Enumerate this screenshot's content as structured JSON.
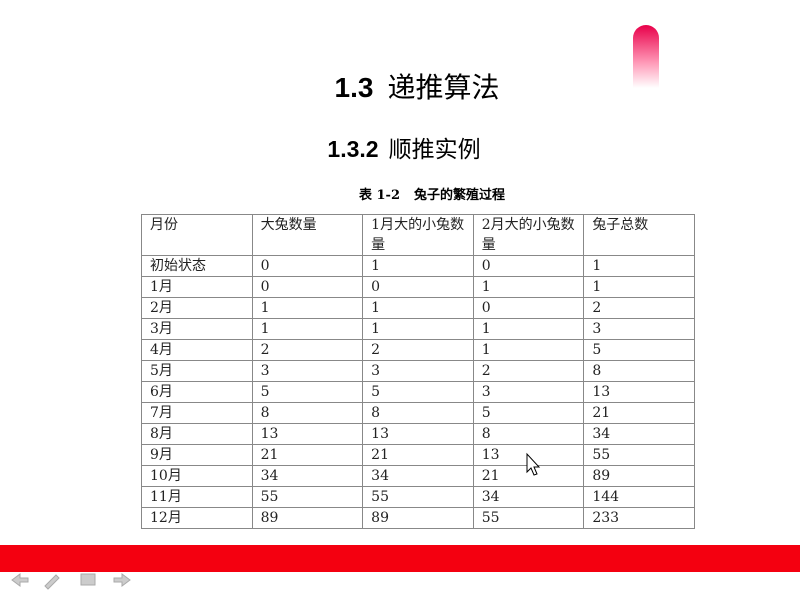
{
  "heading": {
    "number": "1.3",
    "text": "递推算法"
  },
  "subheading": {
    "number": "1.3.2",
    "text": "顺推实例"
  },
  "table": {
    "caption": {
      "label": "表 1-2",
      "text": "兔子的繁殖过程"
    },
    "columns": [
      "月份",
      "大兔数量",
      "1月大的小兔数量",
      "2月大的小兔数量",
      "兔子总数"
    ],
    "rows": [
      [
        "初始状态",
        0,
        1,
        0,
        1
      ],
      [
        "1月",
        0,
        0,
        1,
        1
      ],
      [
        "2月",
        1,
        1,
        0,
        2
      ],
      [
        "3月",
        1,
        1,
        1,
        3
      ],
      [
        "4月",
        2,
        2,
        1,
        5
      ],
      [
        "5月",
        3,
        3,
        2,
        8
      ],
      [
        "6月",
        5,
        5,
        3,
        13
      ],
      [
        "7月",
        8,
        8,
        5,
        21
      ],
      [
        "8月",
        13,
        13,
        8,
        34
      ],
      [
        "9月",
        21,
        21,
        13,
        55
      ],
      [
        "10月",
        34,
        34,
        21,
        89
      ],
      [
        "11月",
        55,
        55,
        34,
        144
      ],
      [
        "12月",
        89,
        89,
        55,
        233
      ]
    ]
  }
}
